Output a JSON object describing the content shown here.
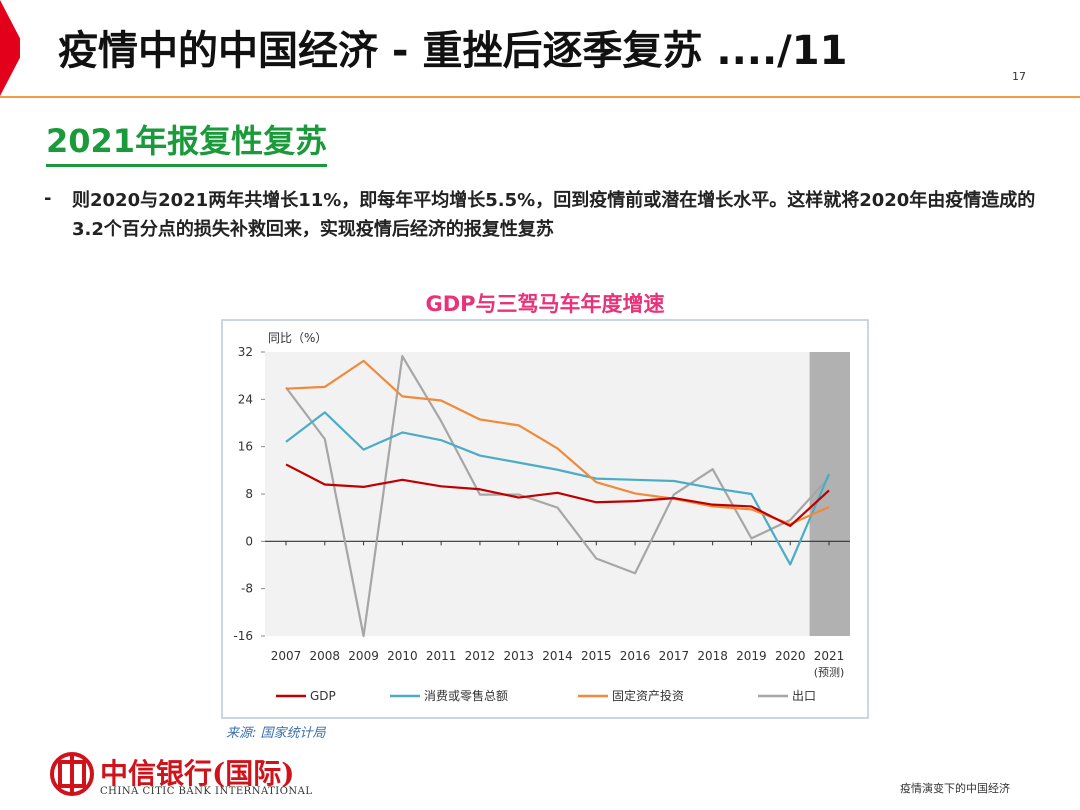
{
  "header": {
    "title": "疫情中的中国经济 - 重挫后逐季复苏 ..../11",
    "page": "17"
  },
  "subtitle": "2021年报复性复苏",
  "bullet_marker": "-",
  "bullet": "则2020与2021两年共增长11%，即每年平均增长5.5%，回到疫情前或潜在增长水平。这样就将2020年由疫情造成的3.2个百分点的损失补救回来，实现疫情后经济的报复性复苏",
  "source": "来源: 国家统计局",
  "logo": {
    "cn": "中信银行(国际)",
    "en": "CHINA CITIC BANK INTERNATIONAL"
  },
  "footer": "疫情演变下的中国经济",
  "chart_data": {
    "type": "line",
    "title": "GDP与三驾马车年度增速",
    "y_label": "同比（%）",
    "categories": [
      "2007",
      "2008",
      "2009",
      "2010",
      "2011",
      "2012",
      "2013",
      "2014",
      "2015",
      "2016",
      "2017",
      "2018",
      "2019",
      "2020",
      "2021"
    ],
    "forecast_label": "(预测)",
    "ylim": [
      -16,
      32
    ],
    "yticks": [
      -16,
      -8,
      0,
      8,
      16,
      24,
      32
    ],
    "series": [
      {
        "name": "GDP",
        "color": "#c00000",
        "values": [
          13.0,
          9.6,
          9.2,
          10.4,
          9.3,
          8.8,
          7.4,
          8.2,
          6.6,
          6.8,
          7.3,
          6.2,
          5.9,
          2.6,
          8.6
        ]
      },
      {
        "name": "消费或零售总额",
        "color": "#4bacc6",
        "values": [
          16.8,
          21.8,
          15.5,
          18.4,
          17.1,
          14.5,
          13.3,
          12.1,
          10.6,
          10.4,
          10.2,
          9.0,
          8.0,
          -3.9,
          11.4
        ]
      },
      {
        "name": "固定资产投资",
        "color": "#f08a3a",
        "values": [
          25.8,
          26.1,
          30.5,
          24.5,
          23.8,
          20.6,
          19.6,
          15.7,
          10.0,
          8.1,
          7.2,
          5.9,
          5.4,
          2.9,
          5.8
        ]
      },
      {
        "name": "出口",
        "color": "#a6a6a6",
        "values": [
          26.0,
          17.3,
          -16.0,
          31.3,
          20.3,
          7.9,
          7.9,
          5.7,
          -2.9,
          -5.4,
          7.9,
          12.2,
          0.5,
          3.6,
          10.8
        ]
      }
    ]
  }
}
